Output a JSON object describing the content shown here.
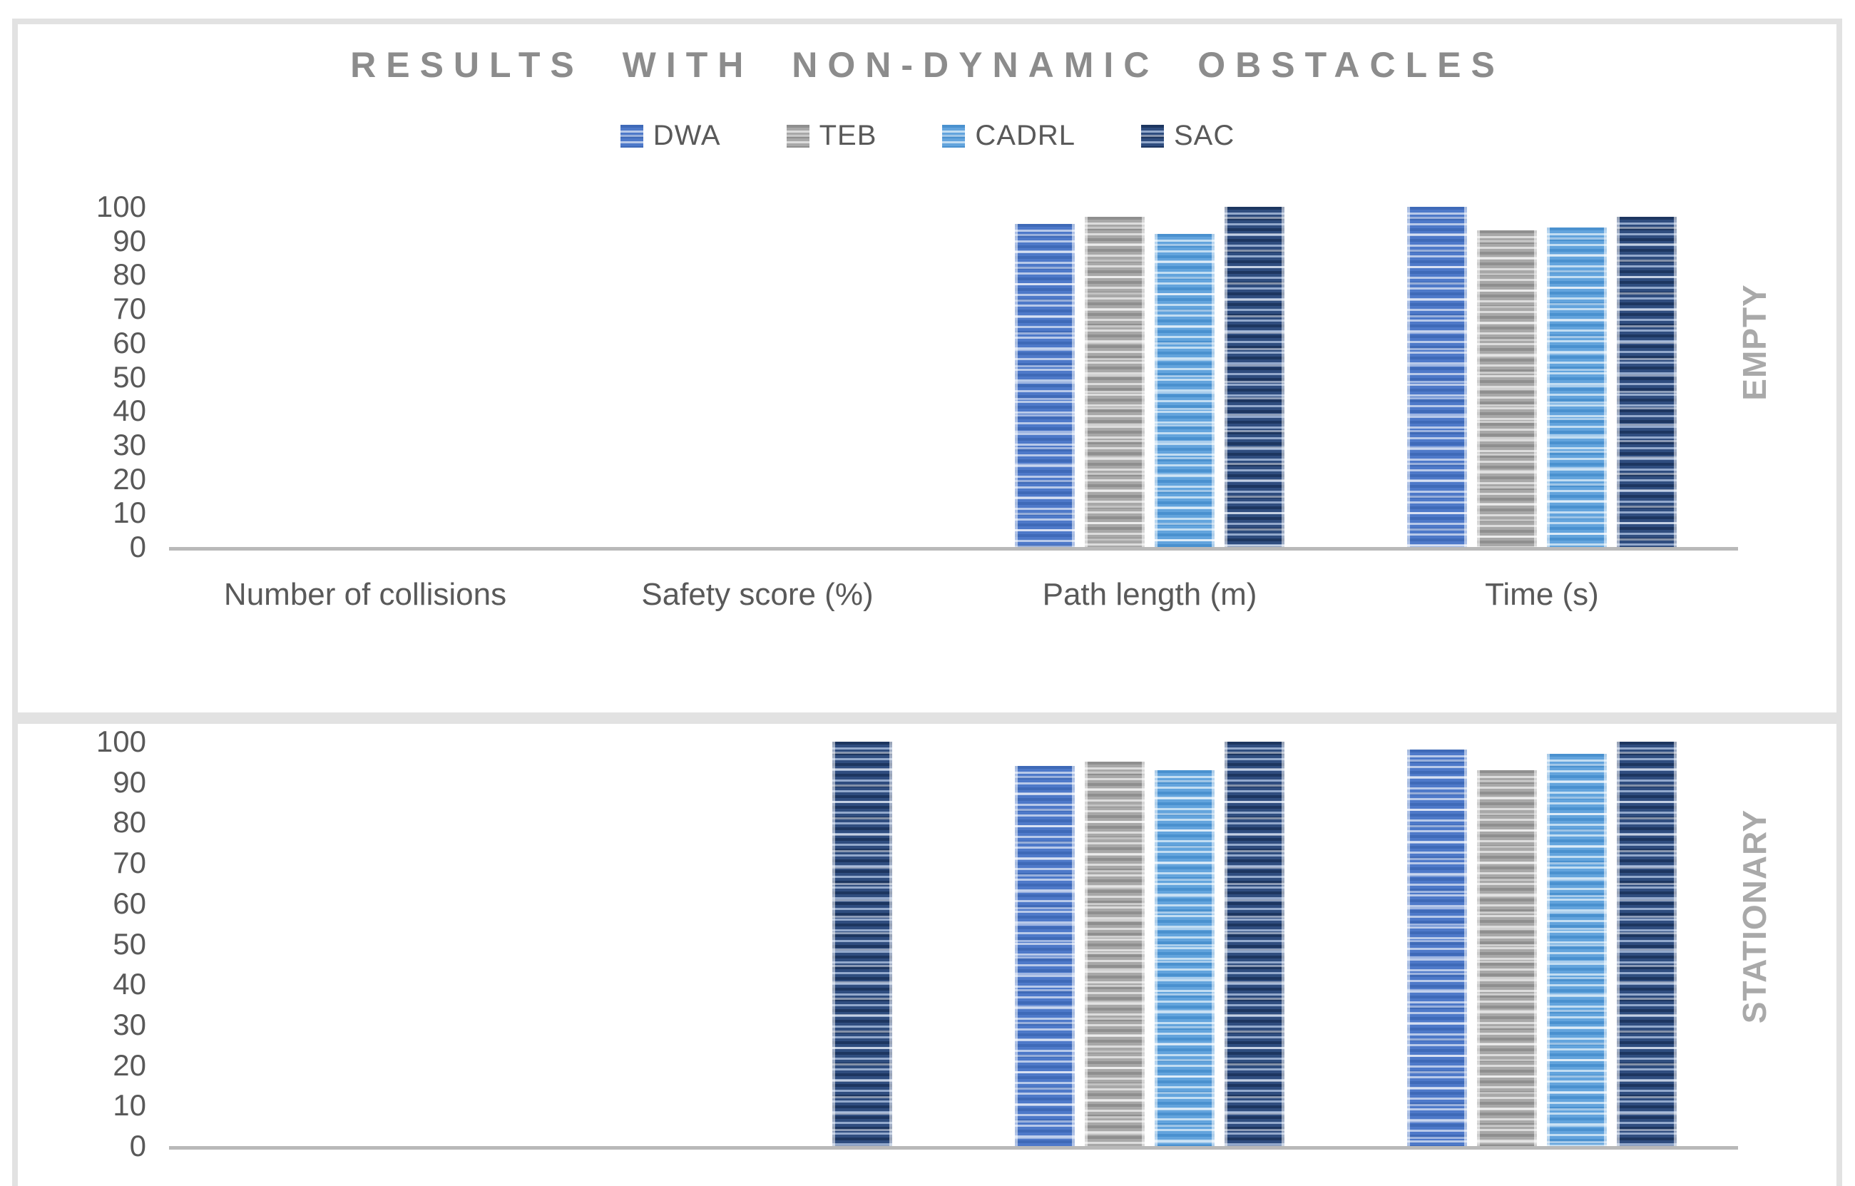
{
  "title": "RESULTS WITH NON-DYNAMIC OBSTACLES",
  "legend": [
    "DWA",
    "TEB",
    "CADRL",
    "SAC"
  ],
  "colors": {
    "DWA": {
      "dark": "#3f6ab8",
      "base": "#4e79c9",
      "light": "#b8c9e9"
    },
    "TEB": {
      "dark": "#8f8f8f",
      "base": "#a8a8a8",
      "light": "#dcdcdc"
    },
    "CADRL": {
      "dark": "#4a91cf",
      "base": "#63a4dd",
      "light": "#c2ddf2"
    },
    "SAC": {
      "dark": "#1d3660",
      "base": "#2f4d7f",
      "light": "#93a9cc"
    }
  },
  "axis_color": "#b9b9b9",
  "chart_data": [
    {
      "type": "bar",
      "panel": "EMPTY",
      "side_label": "EMPTY",
      "categories": [
        "Number of collisions",
        "Safety score (%)",
        "Path length (m)",
        "Time (s)"
      ],
      "series": [
        {
          "name": "DWA",
          "values": [
            0,
            0,
            95,
            100
          ]
        },
        {
          "name": "TEB",
          "values": [
            0,
            0,
            97,
            93
          ]
        },
        {
          "name": "CADRL",
          "values": [
            0,
            0,
            92,
            94
          ]
        },
        {
          "name": "SAC",
          "values": [
            0,
            0,
            100,
            97
          ]
        }
      ],
      "ylim": [
        0,
        100
      ],
      "yticks": [
        100,
        90,
        80,
        70,
        60,
        50,
        40,
        30,
        20,
        10,
        0
      ],
      "grid": false,
      "legend_position": "top"
    },
    {
      "type": "bar",
      "panel": "STATIONARY",
      "side_label": "STATIONARY",
      "categories": [
        "Number of collisions",
        "Safety score (%)",
        "Path length (m)",
        "Time (s)"
      ],
      "series": [
        {
          "name": "DWA",
          "values": [
            0,
            0,
            94,
            98
          ]
        },
        {
          "name": "TEB",
          "values": [
            0,
            0,
            95,
            93
          ]
        },
        {
          "name": "CADRL",
          "values": [
            0,
            0,
            93,
            97
          ]
        },
        {
          "name": "SAC",
          "values": [
            0,
            100,
            100,
            100
          ]
        }
      ],
      "ylim": [
        0,
        100
      ],
      "yticks": [
        100,
        90,
        80,
        70,
        60,
        50,
        40,
        30,
        20,
        10,
        0
      ],
      "grid": false,
      "legend_position": "none"
    }
  ]
}
